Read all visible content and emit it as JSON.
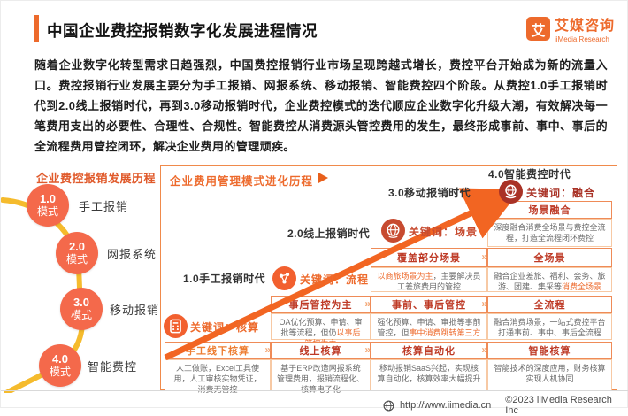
{
  "header": {
    "title": "中国企业费控报销数字化发展进程情况",
    "logo": {
      "glyph": "艾",
      "name": "艾媒咨询",
      "subtitle": "iiMedia Research"
    }
  },
  "intro": "随着企业数字化转型需求日趋强烈，中国费控报销行业市场呈现跨越式增长，费控平台开始成为新的流量入口。费控报销行业发展主要分为手工报销、网报系统、移动报销、智能费控四个阶段。从费控1.0手工报销时代到2.0线上报销时代，再到3.0移动报销时代，企业费控模式的迭代顺应企业数字化升级大潮，有效解决每一笔费用支出的必要性、合理性、合规性。智能费控从消费源头管控费用的发生，最终形成事前、事中、事后的全流程费用管控闭环，解决企业费用的管理顽疾。",
  "colors": {
    "accent": "#ED6A2C",
    "stage_circle": "#F4694B",
    "path_gold": "#F5BB2D",
    "dark_red": "#BE3A26",
    "arrow": "#F26522"
  },
  "sidebar": {
    "title": "企业费控报销发展历程",
    "stages": [
      {
        "num": "1.0",
        "mode": "模式",
        "label": "手工报销"
      },
      {
        "num": "2.0",
        "mode": "模式",
        "label": "网报系统"
      },
      {
        "num": "3.0",
        "mode": "模式",
        "label": "移动报销"
      },
      {
        "num": "4.0",
        "mode": "模式",
        "label": "智能费控"
      }
    ]
  },
  "panel": {
    "title": "企业费用管理模式进化历程",
    "eras": [
      "1.0手工报销时代",
      "2.0线上报销时代",
      "3.0移动报销时代",
      "4.0智能费控时代"
    ],
    "keywords": [
      {
        "label": "关键词：核算",
        "icon": "calculator-icon"
      },
      {
        "label": "关键词：流程",
        "icon": "flow-nodes-icon"
      },
      {
        "label": "关键词：场景",
        "icon": "globe-icon"
      },
      {
        "label": "关键词：融合",
        "icon": "fusion-globe-icon"
      }
    ],
    "columns": [
      {
        "cells": [
          {
            "row": "acct",
            "head": "手工线下核算",
            "head_style": "orange",
            "chevron": true,
            "desc": [
              {
                "t": "人工做账，Excel工具使用，人工审核实物凭证，消费无管控"
              }
            ]
          }
        ]
      },
      {
        "cells": [
          {
            "row": "ctrl",
            "head": "事后管控为主",
            "head_style": "red",
            "chevron": true,
            "desc": [
              {
                "t": "OA优化预算、申请、审批等流程，但仍"
              },
              {
                "t": "以事后管控为主",
                "hl": true
              }
            ]
          },
          {
            "row": "acct",
            "head": "线上核算",
            "head_style": "red",
            "chevron": true,
            "desc": [
              {
                "t": "基于ERP改造网报系统管理费用，报销流程化、核算电子化"
              }
            ]
          }
        ]
      },
      {
        "cells": [
          {
            "row": "scene",
            "head": "覆盖部分场景",
            "head_style": "red",
            "chevron": true,
            "desc": [
              {
                "t": "以商旅场景为主",
                "hl": true
              },
              {
                "t": "，主要解决员工差旅费用的管控"
              }
            ]
          },
          {
            "row": "ctrl",
            "head": "事前、事后管控",
            "head_style": "red",
            "chevron": true,
            "desc": [
              {
                "t": "强化预算、申请、审批等事前管控，但"
              },
              {
                "t": "事中消费跳转第三方",
                "hl": true
              }
            ]
          },
          {
            "row": "acct",
            "head": "核算自动化",
            "head_style": "red",
            "chevron": true,
            "desc": [
              {
                "t": "移动报销SaaS兴起，实现核算自动化，核算效率大幅提升"
              }
            ]
          }
        ]
      },
      {
        "cells": [
          {
            "row": "fusion",
            "head": "场景融合",
            "head_style": "red",
            "chevron": false,
            "desc": [
              {
                "t": "深度融合消费全场景与费控全流程，打造全流程闭环费控"
              }
            ]
          },
          {
            "row": "scene",
            "head": "全场景",
            "head_style": "red",
            "chevron": false,
            "desc": [
              {
                "t": "融合企业差旅、福利、会务、旅游、团建、集采等"
              },
              {
                "t": "消费全场景",
                "hl": true
              }
            ]
          },
          {
            "row": "ctrl",
            "head": "全流程",
            "head_style": "red",
            "chevron": false,
            "desc": [
              {
                "t": "融合消费场景，一站式费控平台打通事前、事中、事后全流程"
              }
            ]
          },
          {
            "row": "acct",
            "head": "智能核算",
            "head_style": "red",
            "chevron": false,
            "desc": [
              {
                "t": "智能技术的深度应用，财务核算实现人机协同"
              }
            ]
          }
        ]
      }
    ]
  },
  "footer": {
    "url": "http://www.iimedia.cn",
    "copyright": "©2023  iiMedia Research Inc"
  }
}
